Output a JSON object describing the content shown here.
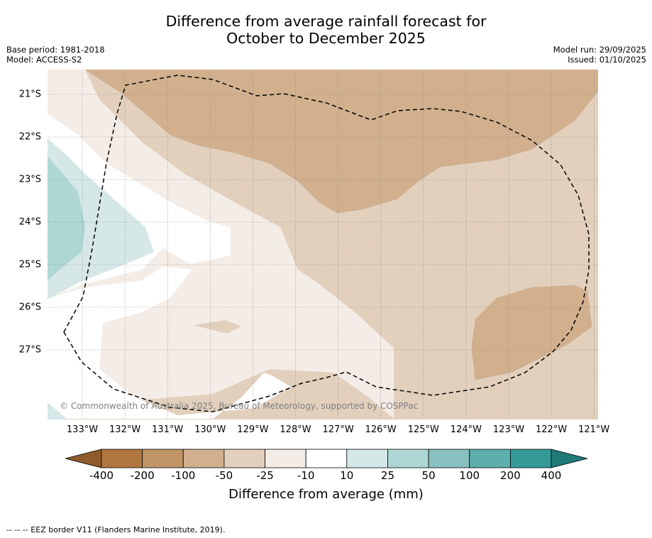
{
  "header": {
    "title_line1": "Difference from average rainfall forecast for",
    "title_line2": "October to December 2025",
    "base_period": "Base period: 1981-2018",
    "model": "Model: ACCESS-S2",
    "model_run": "Model run: 29/09/2025",
    "issued": "Issued: 01/10/2025"
  },
  "map": {
    "latitudes": [
      "21°S",
      "22°S",
      "23°S",
      "24°S",
      "25°S",
      "26°S",
      "27°S"
    ],
    "longitudes": [
      "133°W",
      "132°W",
      "131°W",
      "130°W",
      "129°W",
      "128°W",
      "127°W",
      "126°W",
      "125°W",
      "124°W",
      "123°W",
      "122°W",
      "121°W"
    ],
    "copyright": "© Commonwealth of Australia 2025, Bureau of Meteorology, supported by COSPPac"
  },
  "colorbar": {
    "ticks": [
      "-400",
      "-200",
      "-100",
      "-50",
      "-25",
      "-10",
      "10",
      "25",
      "50",
      "100",
      "200",
      "400"
    ],
    "colors": [
      "#8f5b2a",
      "#b0783f",
      "#c29567",
      "#d2b08d",
      "#e2d0bd",
      "#f4ece6",
      "#ffffff",
      "#d5e8e7",
      "#aed6d5",
      "#88c1bf",
      "#5eaeac",
      "#339a98",
      "#1f7a78"
    ],
    "label": "Difference from average (mm)"
  },
  "footnote": "--  --  -- EEZ border V11 (Flanders Marine Institute, 2019)."
}
